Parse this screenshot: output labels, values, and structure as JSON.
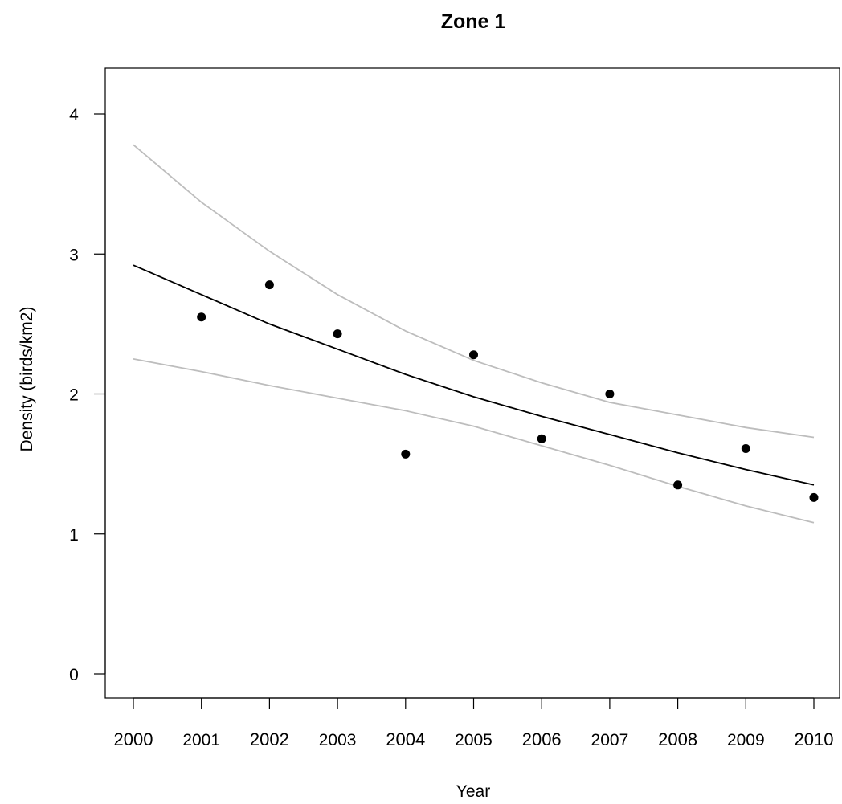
{
  "chart_data": {
    "type": "scatter",
    "title": "Zone 1",
    "xlabel": "Year",
    "ylabel": "Density (birds/km2)",
    "xlim": [
      2000,
      2010
    ],
    "ylim": [
      0,
      4
    ],
    "x_ticks": [
      2000,
      2001,
      2002,
      2003,
      2004,
      2005,
      2006,
      2007,
      2008,
      2009,
      2010
    ],
    "x_tick_labels": [
      "2000",
      "2001",
      "2002",
      "2003",
      "2004",
      "2005",
      "2006",
      "2007",
      "2008",
      "2009",
      "2010"
    ],
    "y_ticks": [
      0,
      1,
      2,
      3,
      4
    ],
    "y_tick_labels": [
      "0",
      "1",
      "2",
      "3",
      "4"
    ],
    "grid": false,
    "series": [
      {
        "kind": "points",
        "x": [
          2001,
          2002,
          2003,
          2004,
          2005,
          2006,
          2007,
          2008,
          2009,
          2010
        ],
        "y": [
          2.55,
          2.78,
          2.43,
          1.57,
          2.28,
          1.68,
          2.0,
          1.35,
          1.61,
          1.26
        ],
        "color": "#000000"
      },
      {
        "kind": "line",
        "x": [
          2000,
          2001,
          2002,
          2003,
          2004,
          2005,
          2006,
          2007,
          2008,
          2009,
          2010
        ],
        "y": [
          2.92,
          2.71,
          2.5,
          2.32,
          2.14,
          1.98,
          1.84,
          1.71,
          1.58,
          1.46,
          1.35
        ],
        "color": "#000000"
      },
      {
        "kind": "line",
        "x": [
          2000,
          2001,
          2002,
          2003,
          2004,
          2005,
          2006,
          2007,
          2008,
          2009,
          2010
        ],
        "y": [
          3.78,
          3.37,
          3.02,
          2.71,
          2.45,
          2.24,
          2.08,
          1.94,
          1.85,
          1.76,
          1.69
        ],
        "color": "#bdbdbd"
      },
      {
        "kind": "line",
        "x": [
          2000,
          2001,
          2002,
          2003,
          2004,
          2005,
          2006,
          2007,
          2008,
          2009,
          2010
        ],
        "y": [
          2.25,
          2.16,
          2.06,
          1.97,
          1.88,
          1.77,
          1.63,
          1.49,
          1.34,
          1.2,
          1.08
        ],
        "color": "#bdbdbd"
      }
    ]
  }
}
